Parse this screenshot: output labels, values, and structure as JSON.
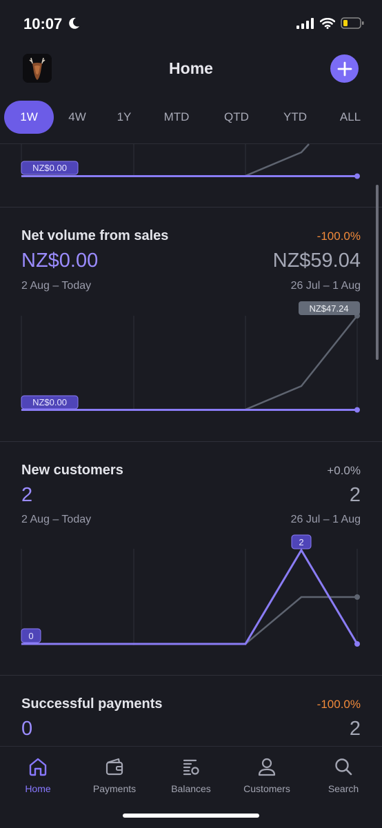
{
  "status_bar": {
    "time": "10:07"
  },
  "header": {
    "title": "Home"
  },
  "tabs": [
    {
      "label": "1W",
      "active": true
    },
    {
      "label": "4W"
    },
    {
      "label": "1Y"
    },
    {
      "label": "MTD"
    },
    {
      "label": "QTD"
    },
    {
      "label": "YTD"
    },
    {
      "label": "ALL"
    }
  ],
  "top_chart": {
    "current_badge": "NZ$0.00"
  },
  "net_volume": {
    "title": "Net volume from sales",
    "change": "-100.0%",
    "current_value": "NZ$0.00",
    "previous_value": "NZ$59.04",
    "current_range": "2 Aug – Today",
    "previous_range": "26 Jul – 1 Aug",
    "current_badge": "NZ$0.00",
    "previous_badge": "NZ$47.24"
  },
  "new_customers": {
    "title": "New customers",
    "change": "+0.0%",
    "current_value": "2",
    "previous_value": "2",
    "current_range": "2 Aug – Today",
    "previous_range": "26 Jul – 1 Aug",
    "start_badge": "0",
    "peak_badge": "2"
  },
  "successful_payments": {
    "title": "Successful payments",
    "change": "-100.0%",
    "current_value": "0",
    "previous_value": "2"
  },
  "nav": [
    {
      "label": "Home",
      "icon": "home-icon",
      "active": true
    },
    {
      "label": "Payments",
      "icon": "wallet-icon"
    },
    {
      "label": "Balances",
      "icon": "balances-icon"
    },
    {
      "label": "Customers",
      "icon": "person-icon"
    },
    {
      "label": "Search",
      "icon": "search-icon"
    }
  ],
  "colors": {
    "accent": "#7b6cf6",
    "background": "#1a1b22",
    "negative": "#f18a3a",
    "previous_line": "#5e6470"
  }
}
